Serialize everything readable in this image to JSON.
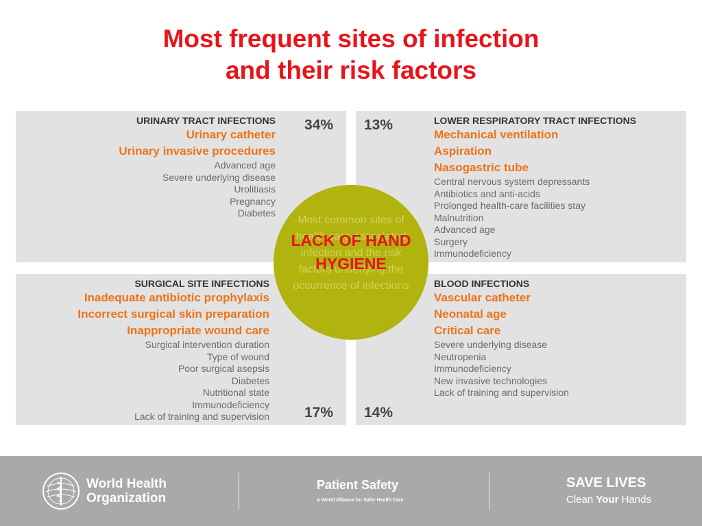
{
  "title": {
    "line1": "Most frequent sites of infection",
    "line2": "and their risk factors"
  },
  "quadrants": {
    "urinary": {
      "heading": "URINARY TRACT INFECTIONS",
      "percent": "34%",
      "major": [
        "Urinary catheter",
        "Urinary invasive procedures"
      ],
      "minor": [
        "Advanced age",
        "Severe underlying disease",
        "Urolitiasis",
        "Pregnancy",
        "Diabetes"
      ]
    },
    "respiratory": {
      "heading": "LOWER RESPIRATORY TRACT INFECTIONS",
      "percent": "13%",
      "major": [
        "Mechanical ventilation",
        "Aspiration",
        "Nasogastric tube"
      ],
      "minor": [
        "Central nervous system depressants",
        "Antibiotics and anti-acids",
        "Prolonged health-care facilities stay",
        "Malnutrition",
        "Advanced age",
        "Surgery",
        "Immunodeficiency"
      ]
    },
    "surgical": {
      "heading": "SURGICAL SITE INFECTIONS",
      "percent": "17%",
      "major": [
        "Inadequate antibiotic prophylaxis",
        "Incorrect surgical skin preparation",
        "Inappropriate wound care"
      ],
      "minor": [
        "Surgical intervention duration",
        "Type of wound",
        "Poor surgical asepsis",
        "Diabetes",
        "Nutritional state",
        "Immunodeficiency",
        "Lack of training and supervision"
      ]
    },
    "blood": {
      "heading": "BLOOD INFECTIONS",
      "percent": "14%",
      "major": [
        "Vascular catheter",
        "Neonatal age",
        "Critical care"
      ],
      "minor": [
        "Severe underlying disease",
        "Neutropenia",
        "Immunodeficiency",
        "New invasive technologies",
        "Lack of training and supervision"
      ]
    }
  },
  "center": {
    "main": "LACK OF HAND HYGIENE",
    "sub": "Most common sites of health care-associated infection and the risk factors underlying the occurrence of infections"
  },
  "footer": {
    "who_line1": "World Health",
    "who_line2": "Organization",
    "patient_safety": "Patient Safety",
    "patient_safety_sub": "A World Alliance for Safer Health Care",
    "save_lives": "SAVE LIVES",
    "clean_pre": "Clean ",
    "clean_bold": "Your",
    "clean_post": " Hands"
  },
  "colors": {
    "title": "#e8141b",
    "major": "#ee7318",
    "minor": "#6b6b6b",
    "panel": "#e2e2e2",
    "circle": "#b1b30f",
    "footer": "#a9a9a9"
  }
}
